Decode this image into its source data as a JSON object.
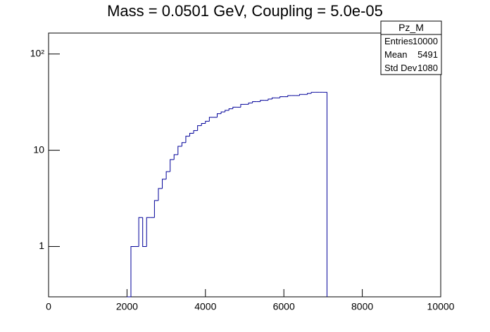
{
  "chart_data": {
    "type": "histogram",
    "title": "Mass = 0.0501 GeV, Coupling = 5.0e-05",
    "bins": [
      2000,
      2100,
      2200,
      2300,
      2400,
      2500,
      2600,
      2700,
      2800,
      2900,
      3000,
      3100,
      3200,
      3300,
      3400,
      3500,
      3600,
      3700,
      3800,
      3900,
      4000,
      4100,
      4200,
      4300,
      4400,
      4500,
      4600,
      4700,
      4800,
      4900,
      5000,
      5100,
      5200,
      5300,
      5400,
      5500,
      5600,
      5700,
      5800,
      5900,
      6000,
      6100,
      6200,
      6300,
      6400,
      6500,
      6600,
      6700,
      6800,
      6900,
      7000,
      7100
    ],
    "values": [
      0,
      1,
      1,
      2,
      1,
      2,
      2,
      3,
      4,
      5,
      6,
      8,
      9,
      11,
      12,
      14,
      15,
      16,
      18,
      19,
      20,
      22,
      22,
      24,
      25,
      26,
      27,
      28,
      28,
      30,
      30,
      31,
      32,
      32,
      33,
      33,
      34,
      35,
      35,
      36,
      36,
      37,
      37,
      37,
      38,
      38,
      39,
      40,
      40,
      40,
      40
    ],
    "color": "#000099",
    "xlim": [
      0,
      10000
    ],
    "xticks": [
      0,
      2000,
      4000,
      6000,
      8000,
      10000
    ],
    "ylim": [
      0.3,
      165
    ],
    "log_y": true,
    "yticks": [
      1,
      10,
      {
        "value": 100,
        "label": "10²"
      }
    ],
    "stats": {
      "name": "Pz_M",
      "rows": [
        [
          "Entries",
          "10000"
        ],
        [
          "Mean",
          "5491"
        ],
        [
          "Std Dev",
          "1080"
        ]
      ]
    }
  }
}
